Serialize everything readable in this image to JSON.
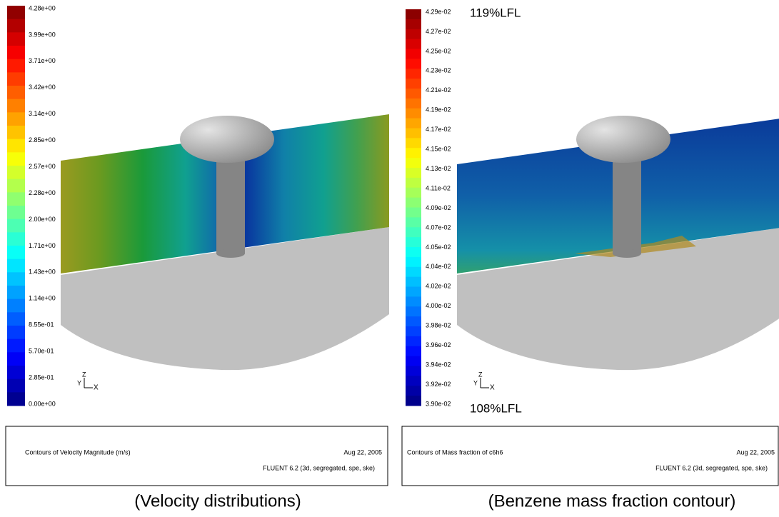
{
  "panels": [
    {
      "legend_labels": [
        "4.28e+00",
        "3.99e+00",
        "3.71e+00",
        "3.42e+00",
        "3.14e+00",
        "2.85e+00",
        "2.57e+00",
        "2.28e+00",
        "2.00e+00",
        "1.71e+00",
        "1.43e+00",
        "1.14e+00",
        "8.55e-01",
        "5.70e-01",
        "2.85e-01",
        "0.00e+00"
      ],
      "axis_triad": {
        "z": "Z",
        "y": "Y",
        "x": "X"
      },
      "caption_title": "Contours of Velocity Magnitude (m/s)",
      "date": "Aug 22, 2005",
      "software": "FLUENT 6.2 (3d, segregated, spe, ske)",
      "caption": "(Velocity distributions)"
    },
    {
      "legend_labels": [
        "4.29e-02",
        "4.27e-02",
        "4.25e-02",
        "4.23e-02",
        "4.21e-02",
        "4.19e-02",
        "4.17e-02",
        "4.15e-02",
        "4.13e-02",
        "4.11e-02",
        "4.09e-02",
        "4.07e-02",
        "4.05e-02",
        "4.04e-02",
        "4.02e-02",
        "4.00e-02",
        "3.98e-02",
        "3.96e-02",
        "3.94e-02",
        "3.92e-02",
        "3.90e-02"
      ],
      "axis_triad": {
        "z": "Z",
        "y": "Y",
        "x": "X"
      },
      "top_note": "119%LFL",
      "bottom_note": "108%LFL",
      "caption_title": "Contours of Mass fraction of c6h6",
      "date": "Aug 22, 2005",
      "software": "FLUENT 6.2 (3d, segregated, spe, ske)",
      "caption": "(Benzene mass fraction contour)"
    }
  ]
}
